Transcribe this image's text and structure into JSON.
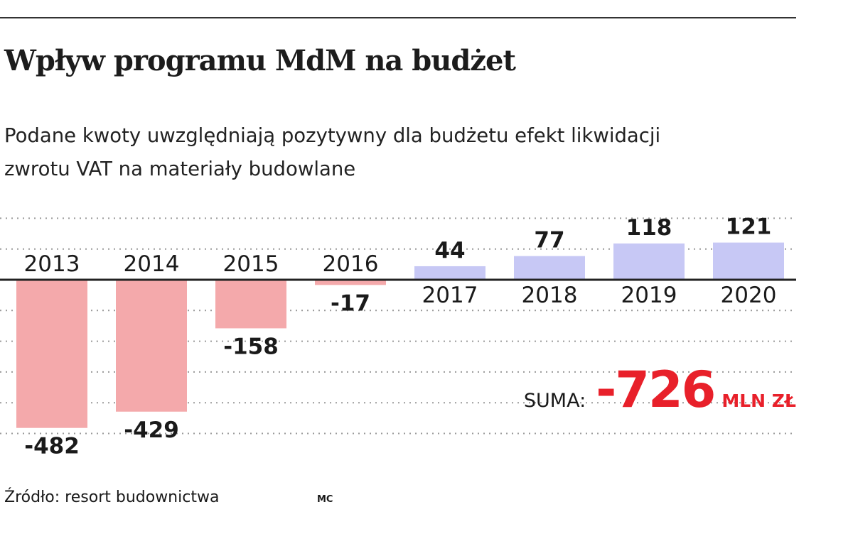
{
  "title": "Wpływ programu MdM na budżet",
  "subtitle_lines": [
    "Podane kwoty uwzględniają pozytywny dla budżetu efekt likwidacji",
    "zwrotu VAT na materiały budowlane"
  ],
  "chart_data": {
    "type": "bar",
    "title": "Wpływ programu MdM na budżet",
    "categories": [
      "2013",
      "2014",
      "2015",
      "2016",
      "2017",
      "2018",
      "2019",
      "2020"
    ],
    "values": [
      -482,
      -429,
      -158,
      -17,
      44,
      77,
      118,
      121
    ],
    "value_labels": [
      "-482",
      "-429",
      "-158",
      "-17",
      "44",
      "77",
      "118",
      "121"
    ],
    "xlabel": "",
    "ylabel": "",
    "ylim": [
      -500,
      200
    ],
    "grid": true,
    "colors": {
      "negative": "#f4a9ab",
      "positive": "#c7c8f5",
      "axis": "#222222",
      "grid": "#9a9a9a"
    }
  },
  "summary": {
    "label": "SUMA:",
    "value": "-726",
    "unit": "MLN ZŁ",
    "color": "#e8202a"
  },
  "source": "Źródło: resort budownictwa",
  "author": "MC"
}
